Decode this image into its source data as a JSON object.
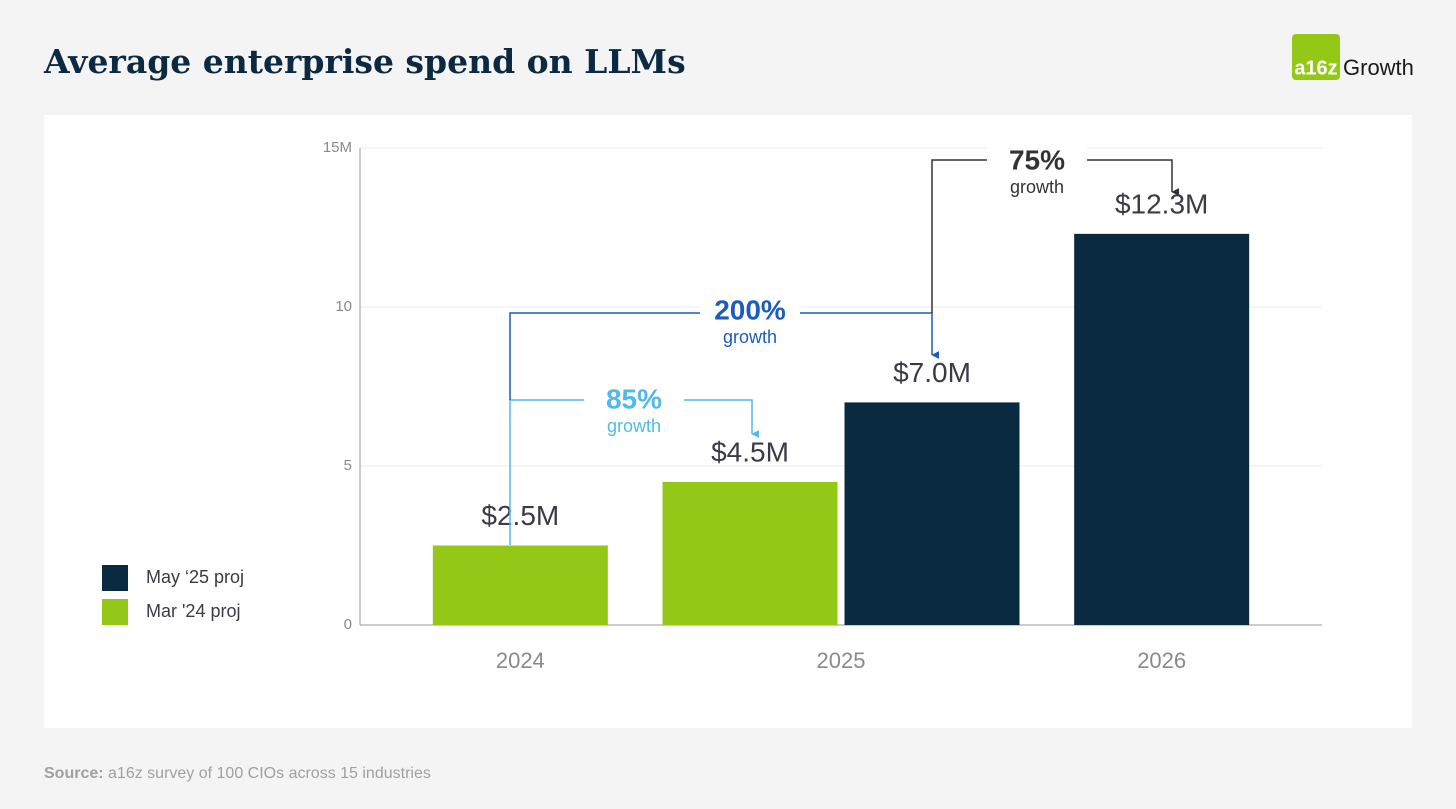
{
  "header": {
    "title": "Average enterprise spend on LLMs",
    "logo_mark": "a16z",
    "logo_text": "Growth"
  },
  "chart_data": {
    "type": "bar",
    "categories": [
      "2024",
      "2025",
      "2026"
    ],
    "series": [
      {
        "name": "May ‘25 proj",
        "color": "#0a2a42",
        "values": [
          null,
          7.0,
          12.3
        ],
        "value_labels": [
          null,
          "$7.0M",
          "$12.3M"
        ]
      },
      {
        "name": "Mar '24 proj",
        "color": "#93c916",
        "values": [
          2.5,
          4.5,
          null
        ],
        "value_labels": [
          "$2.5M",
          "$4.5M",
          null
        ]
      }
    ],
    "ylim": [
      0,
      15
    ],
    "yticks": [
      0,
      5,
      10,
      {
        "value": 15,
        "label": "15M"
      }
    ],
    "grid": true,
    "legend": "bottom-left",
    "annotations": [
      {
        "text": "85%",
        "subtext": "growth",
        "color": "#52b9e9"
      },
      {
        "text": "200%",
        "subtext": "growth",
        "color": "#1d5bbf"
      },
      {
        "text": "75%",
        "subtext": "growth",
        "color": "#333333"
      }
    ]
  },
  "footer": {
    "source_label": "Source:",
    "source_text": "a16z survey of 100 CIOs across 15 industries"
  }
}
